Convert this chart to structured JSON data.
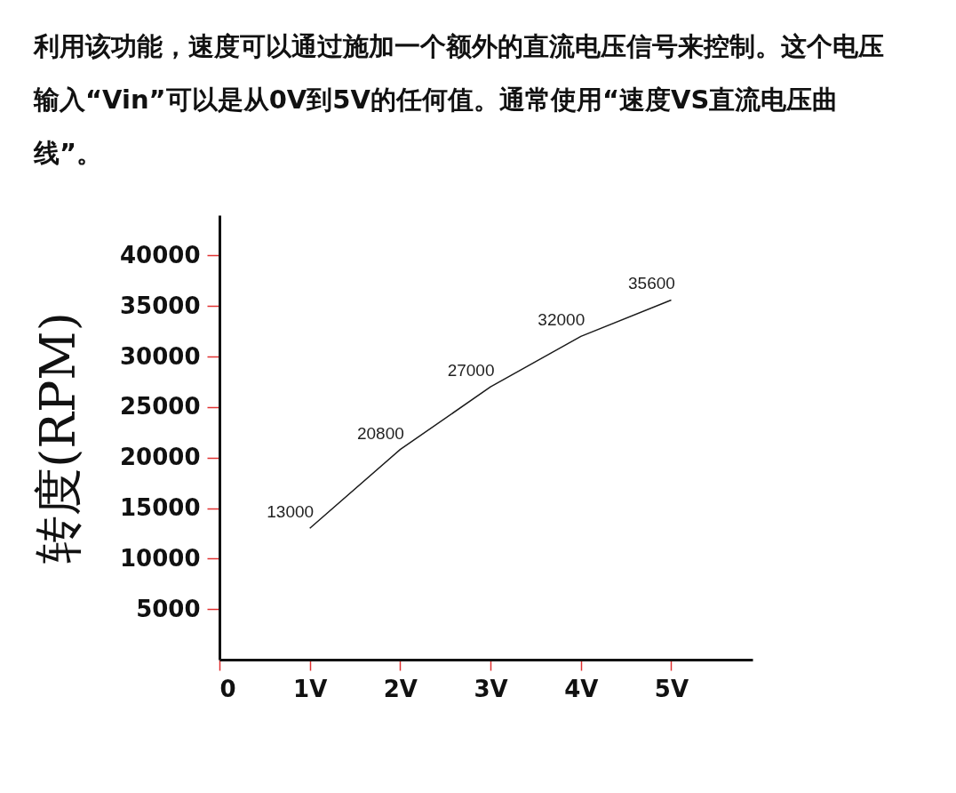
{
  "chart_data": {
    "type": "line",
    "title": "利用该功能，速度可以通过施加一个额外的直流电压信号来控制。这个电压输入“Vin”可以是从0V到5V的任何值。通常使用“速度VS直流电压曲线”。",
    "ylabel": "转度(RPM)",
    "x": [
      1,
      2,
      3,
      4,
      5
    ],
    "series": [
      {
        "color": "#1a1a1a",
        "values": [
          13000,
          20800,
          27000,
          32000,
          35600
        ]
      }
    ],
    "data_labels": true,
    "xlim": [
      0,
      5.9
    ],
    "xticks": [
      {
        "value": 0,
        "label": "0"
      },
      {
        "value": 1,
        "label": "1V"
      },
      {
        "value": 2,
        "label": "2V"
      },
      {
        "value": 3,
        "label": "3V"
      },
      {
        "value": 4,
        "label": "4V"
      },
      {
        "value": 5,
        "label": "5V"
      }
    ],
    "ylim": [
      0,
      44000
    ],
    "yticks": [
      5000,
      10000,
      15000,
      20000,
      25000,
      30000,
      35000,
      40000
    ],
    "grid": false,
    "marker": "none",
    "line_style": "solid"
  }
}
